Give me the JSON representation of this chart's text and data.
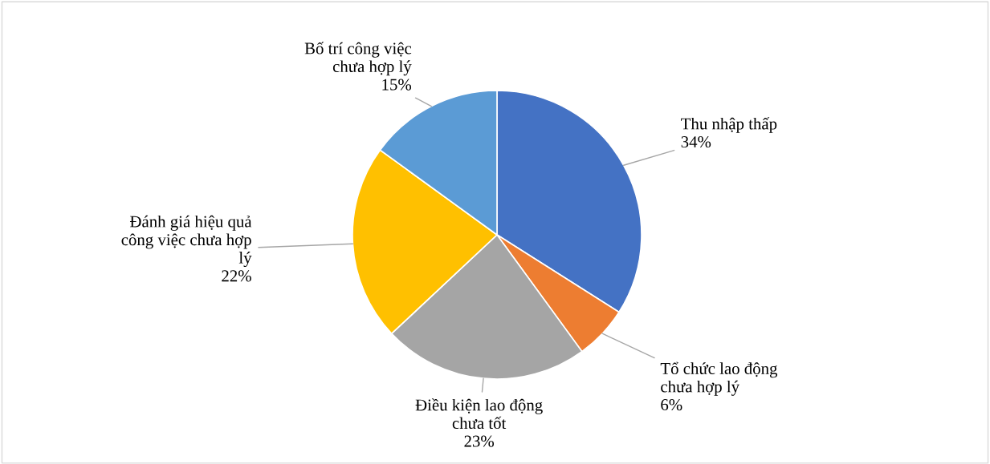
{
  "chart_data": {
    "type": "pie",
    "categories": [
      "Thu nhập thấp",
      "Tổ chức lao động\nchưa hợp lý",
      "Điều kiện lao động\nchưa tốt",
      "Đánh giá hiệu quả\ncông việc chưa hợp\nlý",
      "Bố trí công việc\nchưa hợp lý"
    ],
    "values": [
      34,
      6,
      23,
      22,
      15
    ],
    "value_labels": [
      "34%",
      "6%",
      "23%",
      "22%",
      "15%"
    ],
    "colors": [
      "#4472c4",
      "#ed7d31",
      "#a5a5a5",
      "#ffc000",
      "#5b9bd5"
    ],
    "legend": false
  }
}
